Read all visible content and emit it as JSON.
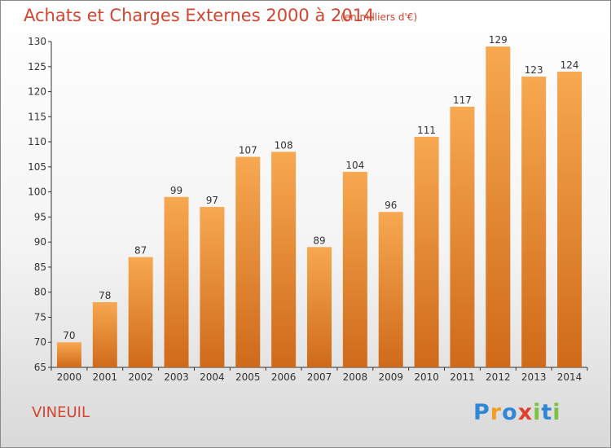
{
  "header": {
    "title": "Achats et Charges Externes 2000 à 2014",
    "subtitle": "(en milliers d'€)"
  },
  "footer": {
    "city": "VINEUIL",
    "logo_text": "Proxiti",
    "logo_letters": [
      {
        "ch": "P",
        "color": "#2f87d6"
      },
      {
        "ch": "r",
        "color": "#f0a020"
      },
      {
        "ch": "o",
        "color": "#2f87d6"
      },
      {
        "ch": "x",
        "color": "#e04030"
      },
      {
        "ch": "i",
        "color": "#7cc142"
      },
      {
        "ch": "t",
        "color": "#2f87d6"
      },
      {
        "ch": "i",
        "color": "#7cc142"
      }
    ]
  },
  "colors": {
    "bar_light": "#f7a850",
    "bar_dark": "#cf6a1a",
    "text_accent": "#d4452f"
  },
  "chart_data": {
    "type": "bar",
    "categories": [
      "2000",
      "2001",
      "2002",
      "2003",
      "2004",
      "2005",
      "2006",
      "2007",
      "2008",
      "2009",
      "2010",
      "2011",
      "2012",
      "2013",
      "2014"
    ],
    "values": [
      70,
      78,
      87,
      99,
      97,
      107,
      108,
      89,
      104,
      96,
      111,
      117,
      129,
      123,
      124
    ],
    "title": "Achats et Charges Externes 2000 à 2014",
    "subtitle": "(en milliers d'€)",
    "xlabel": "",
    "ylabel": "",
    "ylim": [
      65,
      130
    ],
    "yticks": [
      65,
      70,
      75,
      80,
      85,
      90,
      95,
      100,
      105,
      110,
      115,
      120,
      125,
      130
    ],
    "grid": false,
    "data_labels": true
  }
}
